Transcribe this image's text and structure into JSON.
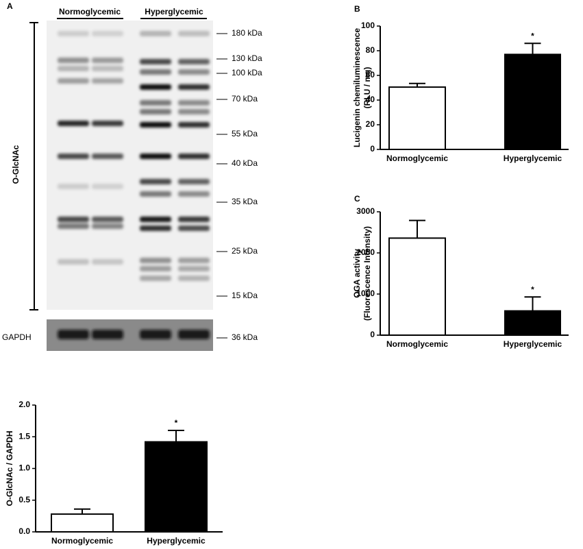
{
  "blot": {
    "panel_label": "A",
    "groups": [
      "Normoglycemic",
      "Hyperglycemic"
    ],
    "target": "O-GlcNAc",
    "loading_control": "GAPDH",
    "markers": [
      "180 kDa",
      "130 kDa",
      "100 kDa",
      "70 kDa",
      "55 kDa",
      "40 kDa",
      "35 kDa",
      "25 kDa",
      "15 kDa"
    ],
    "loading_marker": "36 kDa"
  },
  "chart_data": [
    {
      "type": "bar",
      "ylabel": [
        "O-GlcNAc / GAPDH"
      ],
      "categories": [
        "Normoglycemic",
        "Hyperglycemic"
      ],
      "values": [
        0.28,
        1.42
      ],
      "errors": [
        0.08,
        0.18
      ],
      "colors": [
        "#ffffff",
        "#000000"
      ],
      "significance": [
        null,
        "*"
      ],
      "ylim": [
        0,
        2
      ],
      "yticks": [
        {
          "value": 0,
          "label": "0.0"
        },
        {
          "value": 0.5,
          "label": "0.5"
        },
        {
          "value": 1,
          "label": "1.0"
        },
        {
          "value": 1.5,
          "label": "1.5"
        },
        {
          "value": 2,
          "label": "2.0"
        }
      ]
    },
    {
      "type": "bar",
      "panel_label": "B",
      "ylabel": [
        "Lucigenin chemiluminescence",
        "(RLU / mg)"
      ],
      "categories": [
        "Normoglycemic",
        "Hyperglycemic"
      ],
      "values": [
        50.5,
        77
      ],
      "errors": [
        3,
        9
      ],
      "colors": [
        "#ffffff",
        "#000000"
      ],
      "significance": [
        null,
        "*"
      ],
      "ylim": [
        0,
        100
      ],
      "yticks": [
        0,
        20,
        40,
        60,
        80,
        100
      ]
    },
    {
      "type": "bar",
      "panel_label": "C",
      "ylabel": [
        "OGA activity",
        "(Fluorescence Intensity)"
      ],
      "categories": [
        "Normoglycemic",
        "Hyperglycemic"
      ],
      "values": [
        2360,
        590
      ],
      "errors": [
        430,
        340
      ],
      "colors": [
        "#ffffff",
        "#000000"
      ],
      "significance": [
        null,
        "*"
      ],
      "ylim": [
        0,
        3000
      ],
      "yticks": [
        0,
        1000,
        2000,
        3000
      ]
    }
  ]
}
